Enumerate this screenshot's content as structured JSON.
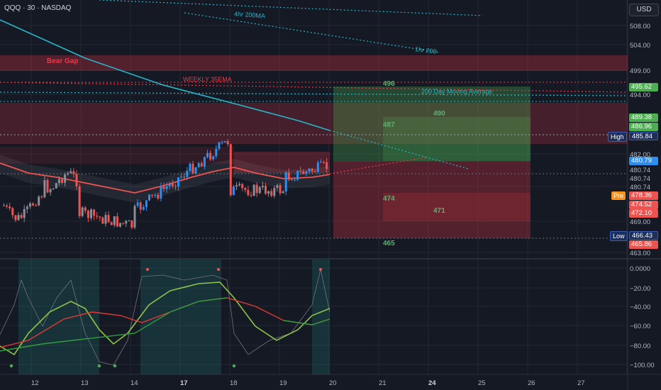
{
  "header": {
    "symbol_line": "QQQ · 30 · NASDAQ",
    "currency_button": "USD"
  },
  "annotations": {
    "ma_4hr": "4hr 200MA",
    "ma_1hr": "1hr 200",
    "bear_gap": "Bear Gap",
    "weekly_ema": "WEEKLY 35EMA",
    "day_ma": "200 Day Moving Average"
  },
  "levels": {
    "l496": "496",
    "l490": "490",
    "l487": "487",
    "l474": "474",
    "l471": "471",
    "l465": "465"
  },
  "price_axis": [
    "508.00",
    "504.00",
    "499.00",
    "494.00",
    "482.00",
    "480.74",
    "480.74",
    "480.74",
    "469.00",
    "463.00"
  ],
  "price_tags": {
    "t495": "495.62",
    "t489": "489.38",
    "t486": "486.96",
    "high_value": "485.84",
    "t480": "480.79",
    "pre_value": "478.36",
    "t474": "474.52",
    "t472": "472.10",
    "low_value": "466.43",
    "t465": "465.86"
  },
  "side_labels": {
    "high": "High",
    "pre": "Pre",
    "low": "Low"
  },
  "oscillator_axis": [
    "0.0000",
    "−20.00",
    "−40.00",
    "−60.00",
    "−80.00",
    "−100.00"
  ],
  "date_axis": [
    "12",
    "13",
    "14",
    "17",
    "18",
    "19",
    "20",
    "21",
    "24",
    "25",
    "26",
    "27"
  ],
  "colors": {
    "bull": "#2e8ef0",
    "bear": "#ef5350",
    "neutral": "#8a8d96",
    "green_box": "#4caf50",
    "red_box": "#f23645",
    "cyan": "#28b6c9"
  }
}
